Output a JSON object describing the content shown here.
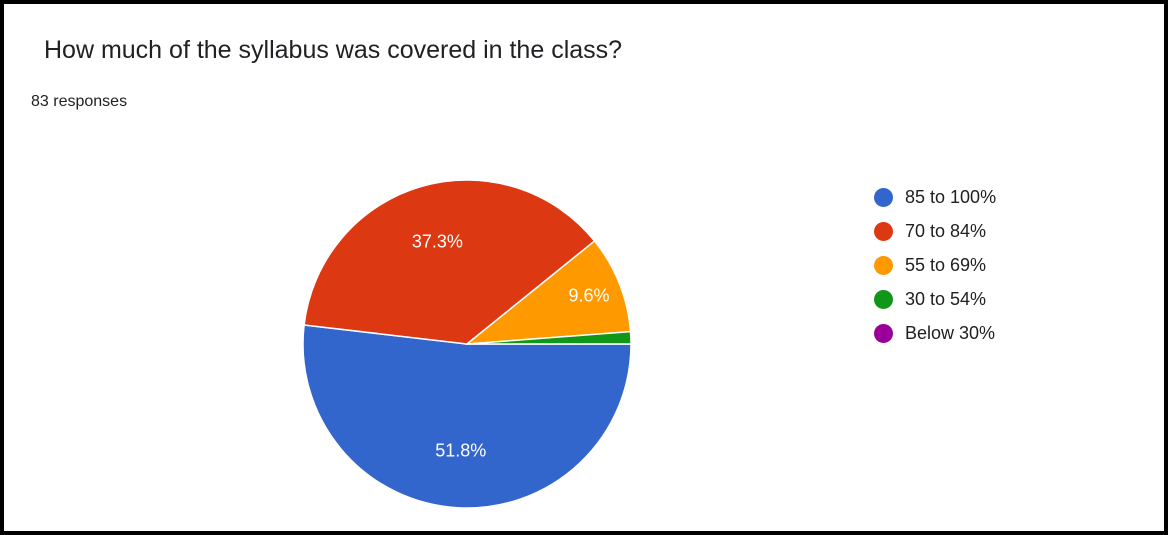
{
  "header": {
    "title": "How much of the syllabus was covered in the class?",
    "responses": "83 responses"
  },
  "chart_data": {
    "type": "pie",
    "title": "How much of the syllabus was covered in the class?",
    "legend_position": "right",
    "categories": [
      "85 to 100%",
      "70 to 84%",
      "55 to 69%",
      "30 to 54%",
      "Below 30%"
    ],
    "values": [
      51.8,
      37.3,
      9.6,
      1.2,
      0
    ],
    "data_labels": [
      "51.8%",
      "37.3%",
      "9.6%",
      "",
      ""
    ],
    "colors": [
      "#3366cc",
      "#dc3912",
      "#ff9900",
      "#109618",
      "#990099"
    ]
  }
}
